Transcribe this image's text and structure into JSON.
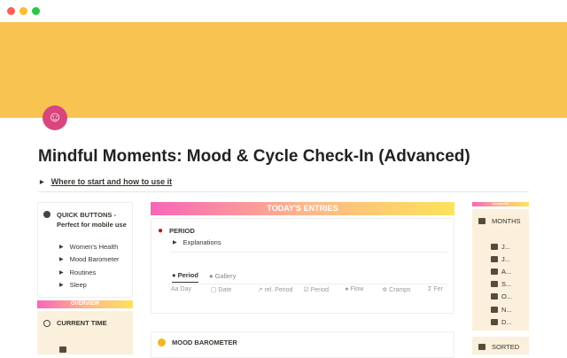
{
  "window": {
    "controls": {
      "close": "#fe5f57",
      "minimize": "#febc2e",
      "zoom": "#28c840"
    }
  },
  "banner": {
    "color": "#f9c352"
  },
  "page": {
    "icon": "smiling-face-icon",
    "title": "Mindful Moments: Mood & Cycle Check-In (Advanced)",
    "toggle_label": "Where to start and how to use it"
  },
  "left": {
    "quick_title": "QUICK BUTTONS - Perfect for mobile use",
    "quick_items": [
      "Women's Health",
      "Mood Barometer",
      "Routines",
      "Sleep"
    ],
    "overview_label": "OVERVIEW",
    "current_time": "CURRENT TIME"
  },
  "center": {
    "header": "TODAY'S ENTRIES",
    "period": {
      "title": "PERIOD",
      "toggle": "Explanations",
      "tabs": [
        "Period",
        "Gallery"
      ],
      "columns": [
        "Day",
        "Date",
        "rel. Period",
        "Period",
        "Flow",
        "Cramps",
        "Fer"
      ]
    },
    "mood": {
      "title": "MOOD BAROMETER"
    }
  },
  "right": {
    "nav_label": "NAVIGATION",
    "months_title": "MONTHS",
    "months": [
      "J...",
      "J...",
      "A...",
      "S...",
      "O...",
      "N...",
      "D..."
    ],
    "sorted_title": "SORTED"
  }
}
